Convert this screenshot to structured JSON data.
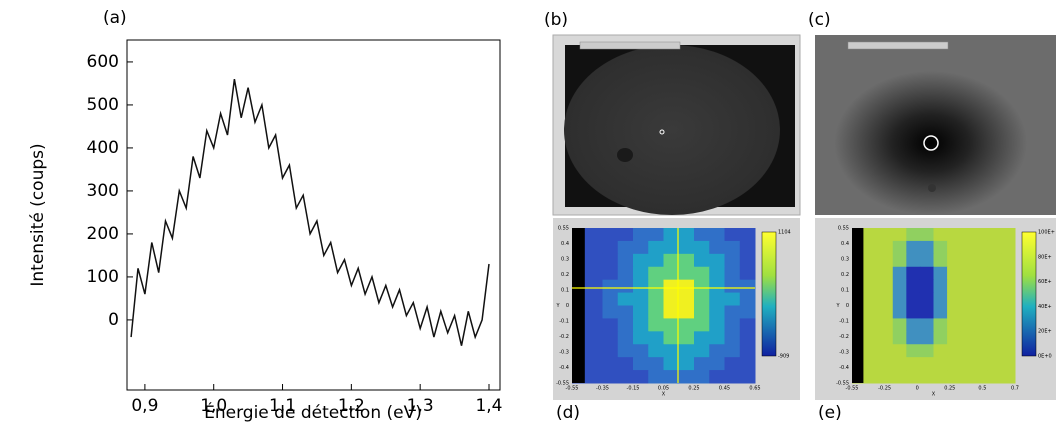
{
  "chart_data": {
    "type": "line",
    "panel_label": "(a)",
    "ylabel": "Intensité (coups)",
    "xlabel": "Énergie de détection (eV)",
    "color": "#111111",
    "x": [
      0.88,
      0.89,
      0.9,
      0.91,
      0.92,
      0.93,
      0.94,
      0.95,
      0.96,
      0.97,
      0.98,
      0.99,
      1.0,
      1.01,
      1.02,
      1.03,
      1.04,
      1.05,
      1.06,
      1.07,
      1.08,
      1.09,
      1.1,
      1.11,
      1.12,
      1.13,
      1.14,
      1.15,
      1.16,
      1.17,
      1.18,
      1.19,
      1.2,
      1.21,
      1.22,
      1.23,
      1.24,
      1.25,
      1.26,
      1.27,
      1.28,
      1.29,
      1.3,
      1.31,
      1.32,
      1.33,
      1.34,
      1.35,
      1.36,
      1.37,
      1.38,
      1.39,
      1.4
    ],
    "series": [
      {
        "values": [
          -40,
          120,
          60,
          180,
          110,
          230,
          190,
          300,
          260,
          380,
          330,
          440,
          400,
          480,
          430,
          560,
          470,
          540,
          460,
          500,
          400,
          430,
          330,
          360,
          260,
          290,
          200,
          230,
          150,
          180,
          110,
          140,
          80,
          120,
          60,
          100,
          40,
          80,
          30,
          70,
          10,
          40,
          -20,
          30,
          -40,
          20,
          -30,
          10,
          -60,
          20,
          -40,
          0,
          130
        ]
      }
    ],
    "xlim": [
      0.874,
      1.416
    ],
    "ylim": [
      -163,
      651
    ],
    "xticks": [
      {
        "value": 0.9,
        "label": "0,9"
      },
      {
        "value": 1.0,
        "label": "1,0"
      },
      {
        "value": 1.1,
        "label": "1,1"
      },
      {
        "value": 1.2,
        "label": "1,2"
      },
      {
        "value": 1.3,
        "label": "1,3"
      },
      {
        "value": 1.4,
        "label": "1,4"
      }
    ],
    "yticks": [
      0,
      100,
      200,
      300,
      400,
      500,
      600
    ]
  },
  "panels": {
    "b": {
      "label": "(b)"
    },
    "c": {
      "label": "(c)"
    },
    "d": {
      "label": "(d)",
      "xticks": [
        "-0.55",
        "-0.35",
        "-0.15",
        "0.05",
        "0.25",
        "0.45",
        "0.65"
      ],
      "yticks": [
        "0.55",
        "0.4",
        "0.3",
        "0.2",
        "0.1",
        "0",
        "-0.1",
        "-0.2",
        "-0.3",
        "-0.4",
        "-0.55"
      ],
      "colorbar": [
        "1104",
        "-909"
      ],
      "xlabel": "X",
      "ylabel": "Y"
    },
    "e": {
      "label": "(e)",
      "xticks": [
        "-0.55",
        "-0.25",
        "0",
        "0.25",
        "0.5",
        "0.7"
      ],
      "yticks": [
        "0.55",
        "0.4",
        "0.3",
        "0.2",
        "0.1",
        "0",
        "-0.1",
        "-0.2",
        "-0.3",
        "-0.4",
        "-0.55"
      ],
      "colorbar": [
        "100E+",
        "80E+",
        "60E+",
        "40E+",
        "20E+",
        "0E+0"
      ],
      "xlabel": "X",
      "ylabel": "Y"
    }
  }
}
